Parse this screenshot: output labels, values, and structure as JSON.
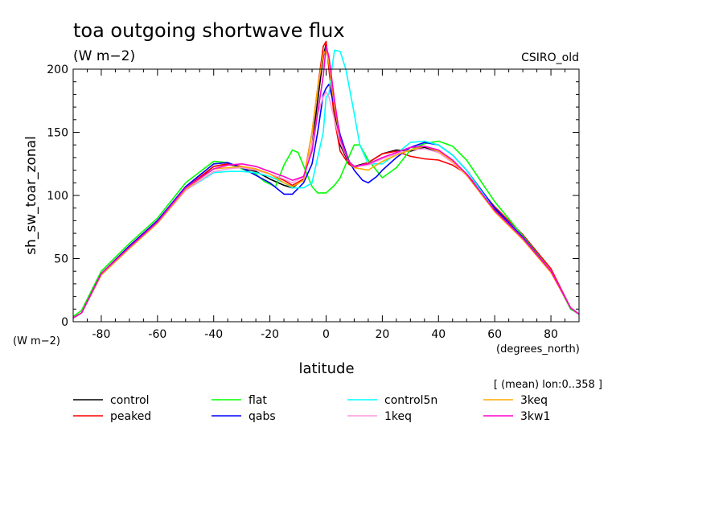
{
  "chart_data": {
    "type": "line",
    "title": "toa outgoing shortwave flux",
    "subtitle": "(W m−2)",
    "model_label": "CSIRO_old",
    "xlabel": "latitude",
    "x_units": "(degrees_north)",
    "ylabel": "sh_sw_toar_zonal",
    "y_units": "(W m−2)",
    "averaging_note": "[ (mean) lon:0..358 ]",
    "xlim": [
      -90,
      90
    ],
    "ylim": [
      0,
      200
    ],
    "x_ticks": [
      -80,
      -60,
      -40,
      -20,
      0,
      20,
      40,
      60,
      80
    ],
    "y_ticks": [
      0,
      50,
      100,
      150,
      200
    ],
    "grid": false,
    "legend_position": "bottom",
    "series": [
      {
        "name": "control",
        "color": "#000000",
        "x": [
          -90,
          -87,
          -80,
          -70,
          -60,
          -50,
          -40,
          -35,
          -30,
          -25,
          -20,
          -15,
          -12,
          -8,
          -5,
          -3,
          -1,
          0,
          1,
          3,
          5,
          8,
          10,
          15,
          20,
          25,
          30,
          35,
          40,
          45,
          50,
          60,
          70,
          80,
          87,
          90
        ],
        "y": [
          3,
          7,
          38,
          60,
          80,
          105,
          123,
          125,
          122,
          119,
          113,
          108,
          106,
          113,
          140,
          175,
          210,
          220,
          205,
          165,
          140,
          126,
          123,
          126,
          133,
          136,
          135,
          138,
          134,
          127,
          117,
          89,
          67,
          40,
          11,
          6
        ]
      },
      {
        "name": "peaked",
        "color": "#ff0000",
        "x": [
          -90,
          -87,
          -80,
          -70,
          -60,
          -50,
          -40,
          -35,
          -30,
          -25,
          -20,
          -15,
          -12,
          -8,
          -5,
          -3,
          -1,
          0,
          1,
          3,
          5,
          8,
          10,
          15,
          20,
          25,
          30,
          35,
          40,
          45,
          50,
          60,
          70,
          80,
          87,
          90
        ],
        "y": [
          3,
          7,
          38,
          60,
          80,
          106,
          123,
          125,
          123,
          121,
          117,
          112,
          108,
          113,
          150,
          185,
          218,
          222,
          200,
          160,
          135,
          125,
          122,
          126,
          133,
          135,
          131,
          129,
          128,
          124,
          117,
          91,
          69,
          42,
          11,
          6
        ]
      },
      {
        "name": "flat",
        "color": "#00ff00",
        "x": [
          -90,
          -87,
          -80,
          -70,
          -60,
          -50,
          -40,
          -35,
          -30,
          -25,
          -22,
          -18,
          -15,
          -12,
          -10,
          -7,
          -5,
          -3,
          0,
          3,
          5,
          8,
          10,
          12,
          15,
          20,
          25,
          30,
          35,
          40,
          45,
          50,
          60,
          70,
          80,
          87,
          90
        ],
        "y": [
          4,
          9,
          40,
          62,
          82,
          110,
          127,
          126,
          121,
          117,
          111,
          107,
          124,
          136,
          134,
          118,
          107,
          102,
          102,
          108,
          114,
          130,
          140,
          140,
          128,
          114,
          122,
          136,
          141,
          143,
          139,
          128,
          95,
          68,
          40,
          10,
          6
        ]
      },
      {
        "name": "qabs",
        "color": "#0000ff",
        "x": [
          -90,
          -87,
          -80,
          -70,
          -60,
          -50,
          -40,
          -35,
          -30,
          -25,
          -20,
          -15,
          -12,
          -8,
          -5,
          -3,
          -1,
          0,
          1,
          3,
          5,
          8,
          10,
          13,
          15,
          18,
          20,
          25,
          30,
          35,
          40,
          45,
          50,
          60,
          70,
          80,
          87,
          90
        ],
        "y": [
          3,
          7,
          38,
          60,
          80,
          107,
          125,
          126,
          122,
          116,
          110,
          101,
          101,
          110,
          125,
          150,
          180,
          185,
          188,
          170,
          148,
          128,
          120,
          112,
          110,
          115,
          120,
          130,
          138,
          142,
          140,
          132,
          120,
          90,
          67,
          40,
          11,
          6
        ]
      },
      {
        "name": "control5n",
        "color": "#00ffff",
        "x": [
          -90,
          -87,
          -80,
          -70,
          -60,
          -50,
          -40,
          -35,
          -30,
          -25,
          -20,
          -15,
          -12,
          -8,
          -5,
          -3,
          -1,
          0,
          1,
          2,
          3,
          5,
          7,
          10,
          12,
          15,
          20,
          25,
          30,
          35,
          40,
          45,
          50,
          60,
          70,
          80,
          87,
          90
        ],
        "y": [
          3,
          7,
          37,
          58,
          78,
          104,
          118,
          119,
          119,
          118,
          115,
          110,
          106,
          106,
          110,
          130,
          150,
          178,
          180,
          200,
          215,
          214,
          200,
          165,
          140,
          125,
          125,
          133,
          142,
          143,
          140,
          132,
          120,
          88,
          66,
          40,
          11,
          6
        ]
      },
      {
        "name": "1keq",
        "color": "#ff99dd",
        "x": [
          -90,
          -87,
          -80,
          -70,
          -60,
          -50,
          -40,
          -35,
          -30,
          -25,
          -20,
          -15,
          -12,
          -8,
          -5,
          -3,
          -1,
          0,
          1,
          3,
          5,
          8,
          10,
          15,
          20,
          25,
          30,
          35,
          40,
          45,
          50,
          60,
          70,
          80,
          87,
          90
        ],
        "y": [
          3,
          7,
          37,
          58,
          78,
          104,
          119,
          121,
          122,
          120,
          117,
          113,
          110,
          115,
          140,
          165,
          178,
          182,
          178,
          160,
          142,
          127,
          123,
          124,
          129,
          133,
          136,
          137,
          134,
          126,
          116,
          88,
          66,
          40,
          11,
          6
        ]
      },
      {
        "name": "3keq",
        "color": "#ffaa00",
        "x": [
          -90,
          -87,
          -80,
          -70,
          -60,
          -50,
          -40,
          -35,
          -30,
          -25,
          -20,
          -15,
          -12,
          -8,
          -5,
          -3,
          -1,
          0,
          1,
          3,
          5,
          8,
          10,
          15,
          20,
          25,
          30,
          35,
          40,
          45,
          50,
          60,
          70,
          80,
          87,
          90
        ],
        "y": [
          3,
          7,
          37,
          58,
          78,
          105,
          121,
          122,
          123,
          121,
          117,
          110,
          107,
          112,
          150,
          185,
          212,
          215,
          205,
          170,
          145,
          127,
          122,
          120,
          127,
          132,
          136,
          139,
          135,
          127,
          116,
          87,
          65,
          39,
          11,
          6
        ]
      },
      {
        "name": "3kw1",
        "color": "#ff00cc",
        "x": [
          -90,
          -87,
          -80,
          -70,
          -60,
          -50,
          -40,
          -35,
          -30,
          -25,
          -20,
          -15,
          -12,
          -8,
          -5,
          -3,
          -1,
          0,
          1,
          3,
          5,
          8,
          10,
          15,
          20,
          25,
          30,
          35,
          40,
          45,
          50,
          60,
          70,
          80,
          87,
          90
        ],
        "y": [
          3,
          7,
          38,
          59,
          79,
          106,
          121,
          124,
          125,
          123,
          119,
          115,
          112,
          115,
          135,
          165,
          195,
          218,
          210,
          175,
          145,
          127,
          123,
          125,
          130,
          134,
          138,
          139,
          136,
          128,
          117,
          88,
          66,
          40,
          11,
          6
        ]
      }
    ]
  }
}
